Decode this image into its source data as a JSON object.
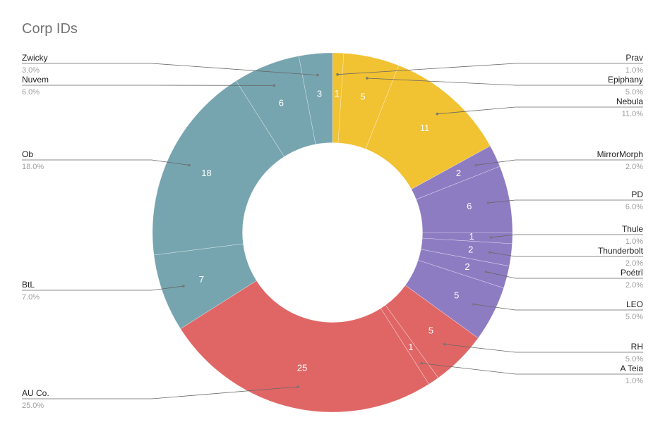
{
  "chart_data": {
    "type": "pie",
    "title": "Corp IDs",
    "slices": [
      {
        "label": "Prav",
        "value": 1,
        "percent": "1.0%",
        "color": "#f1c232"
      },
      {
        "label": "Epiphany",
        "value": 5,
        "percent": "5.0%",
        "color": "#f1c232"
      },
      {
        "label": "Nebula",
        "value": 11,
        "percent": "11.0%",
        "color": "#f1c232"
      },
      {
        "label": "MirrorMorph",
        "value": 2,
        "percent": "2.0%",
        "color": "#8e7cc3"
      },
      {
        "label": "PD",
        "value": 6,
        "percent": "6.0%",
        "color": "#8e7cc3"
      },
      {
        "label": "Thule",
        "value": 1,
        "percent": "1.0%",
        "color": "#8e7cc3"
      },
      {
        "label": "Thunderbolt",
        "value": 2,
        "percent": "2.0%",
        "color": "#8e7cc3"
      },
      {
        "label": "Poétrï",
        "value": 2,
        "percent": "2.0%",
        "color": "#8e7cc3"
      },
      {
        "label": "LEO",
        "value": 5,
        "percent": "5.0%",
        "color": "#8e7cc3"
      },
      {
        "label": "RH",
        "value": 5,
        "percent": "5.0%",
        "color": "#e06666"
      },
      {
        "label": "A Teia",
        "value": 1,
        "percent": "1.0%",
        "color": "#e06666"
      },
      {
        "label": "AU Co.",
        "value": 25,
        "percent": "25.0%",
        "color": "#e06666"
      },
      {
        "label": "BtL",
        "value": 7,
        "percent": "7.0%",
        "color": "#76a5af"
      },
      {
        "label": "Ob",
        "value": 18,
        "percent": "18.0%",
        "color": "#76a5af"
      },
      {
        "label": "Nuvem",
        "value": 6,
        "percent": "6.0%",
        "color": "#76a5af"
      },
      {
        "label": "Zwicky",
        "value": 3,
        "percent": "3.0%",
        "color": "#76a5af"
      }
    ],
    "hole": 0.5,
    "legend": "callouts"
  }
}
